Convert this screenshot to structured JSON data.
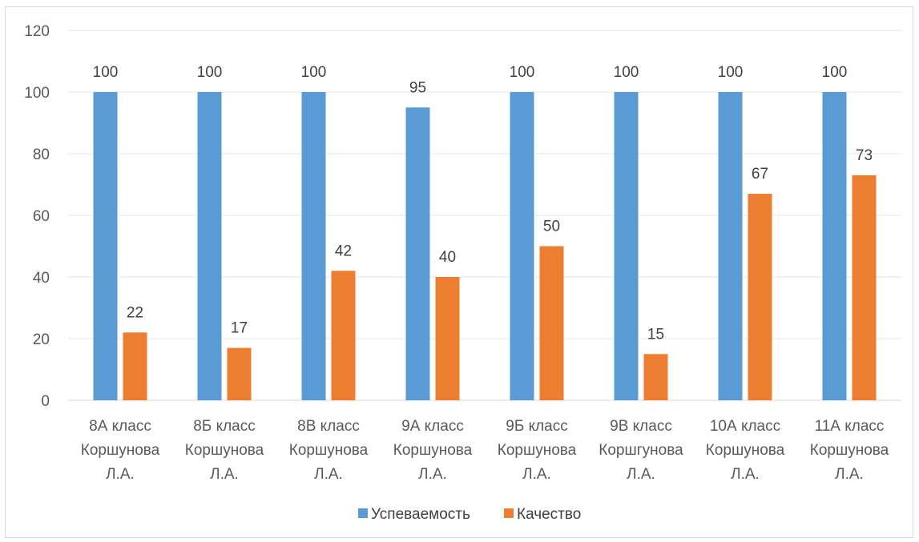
{
  "chart_data": {
    "type": "bar",
    "categories": [
      [
        "8А класс",
        "Коршунова",
        "Л.А."
      ],
      [
        "8Б класс",
        "Коршунова",
        "Л.А."
      ],
      [
        "8В класс",
        "Коршунова",
        "Л.А."
      ],
      [
        "9А класс",
        "Коршунова",
        "Л.А."
      ],
      [
        "9Б класс",
        "Коршунова",
        "Л.А."
      ],
      [
        "9В класс",
        "Коршгунова",
        "Л.А."
      ],
      [
        "10А класс",
        "Коршунова",
        "Л.А."
      ],
      [
        "11А класс",
        "Коршунова",
        "Л.А."
      ]
    ],
    "series": [
      {
        "name": "Успеваемость",
        "color": "#5b9bd5",
        "values": [
          100,
          100,
          100,
          95,
          100,
          100,
          100,
          100
        ]
      },
      {
        "name": "Качество",
        "color": "#ed7d31",
        "values": [
          22,
          17,
          42,
          40,
          50,
          15,
          67,
          73
        ]
      }
    ],
    "ylim": [
      0,
      120
    ],
    "yticks": [
      0,
      20,
      40,
      60,
      80,
      100,
      120
    ],
    "grid": true,
    "legend": "bottom",
    "data_labels": true
  }
}
